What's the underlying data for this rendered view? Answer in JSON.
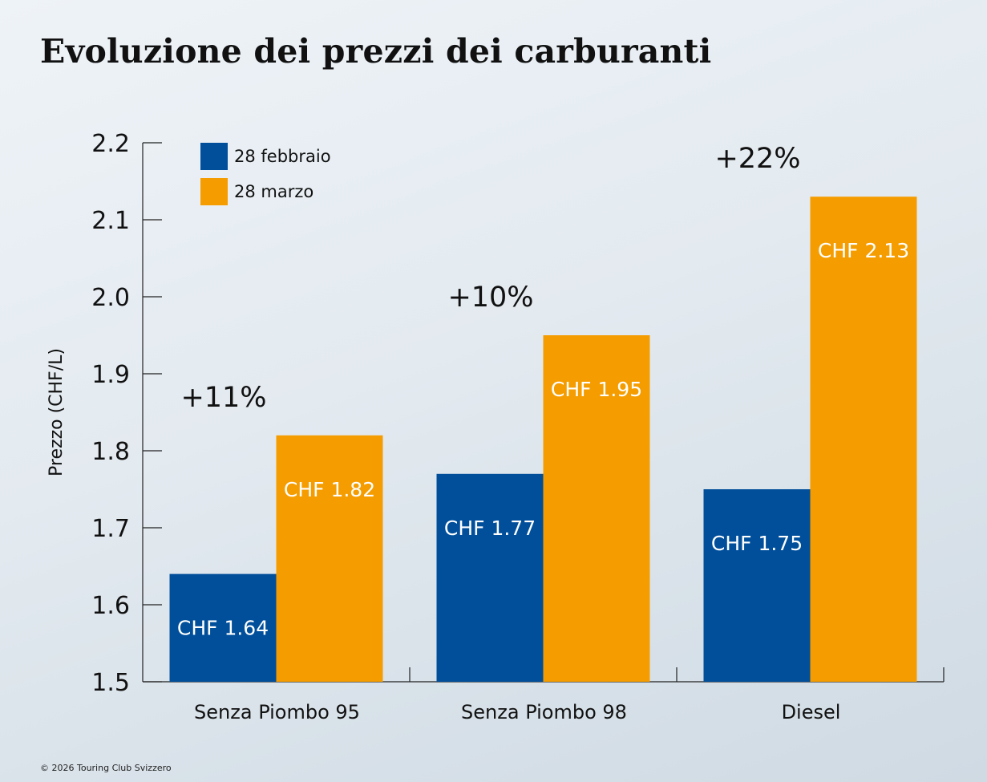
{
  "title": "Evoluzione dei prezzi dei carburanti",
  "footer": "© 2026 Touring Club Svizzero",
  "colors": {
    "feb": "#014f9b",
    "mar": "#f59d00",
    "axis": "#222222"
  },
  "chart_data": {
    "type": "bar",
    "title": "Evoluzione dei prezzi dei carburanti",
    "xlabel": "",
    "ylabel": "Prezzo (CHF/L)",
    "ylim": [
      1.5,
      2.2
    ],
    "yticks": [
      "1.5",
      "1.6",
      "1.7",
      "1.8",
      "1.9",
      "2.0",
      "2.1",
      "2.2"
    ],
    "legend_position": "top-left",
    "categories": [
      "Senza Piombo 95",
      "Senza Piombo 98",
      "Diesel"
    ],
    "series": [
      {
        "name": "28 febbraio",
        "values": [
          1.64,
          1.77,
          1.75
        ],
        "labels": [
          "CHF 1.64",
          "CHF 1.77",
          "CHF 1.75"
        ]
      },
      {
        "name": "28 marzo",
        "values": [
          1.82,
          1.95,
          2.13
        ],
        "labels": [
          "CHF 1.82",
          "CHF 1.95",
          "CHF 2.13"
        ]
      }
    ],
    "annotations": [
      "+11%",
      "+10%",
      "+22%"
    ]
  }
}
